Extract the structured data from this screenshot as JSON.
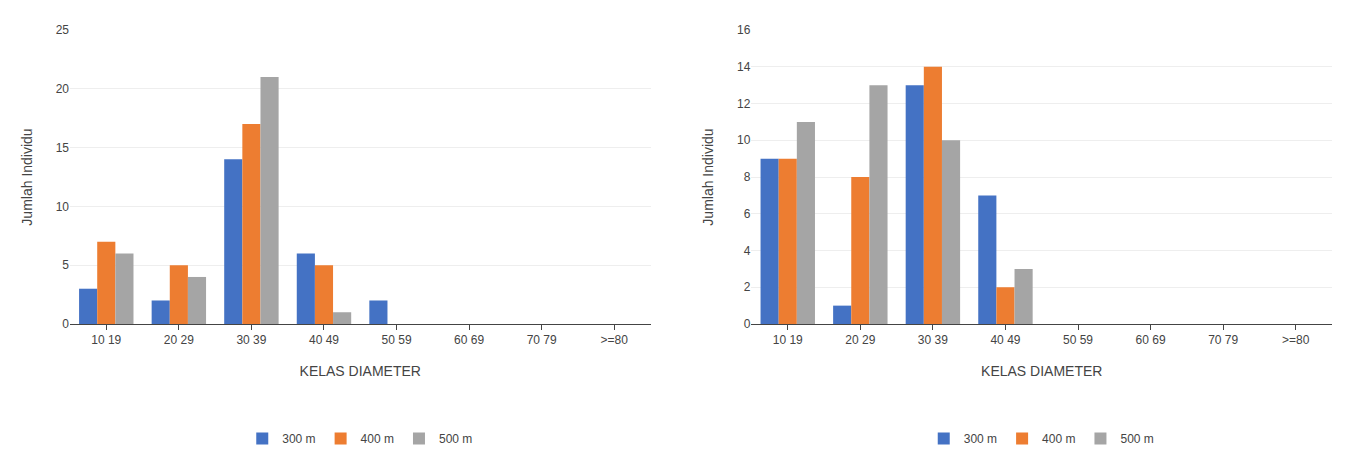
{
  "chart_data": [
    {
      "type": "bar",
      "categories": [
        "10 19",
        "20 29",
        "30 39",
        "40 49",
        "50 59",
        "60 69",
        "70 79",
        ">=80"
      ],
      "series": [
        {
          "name": "300 m",
          "color": "#4472C4",
          "values": [
            3,
            2,
            14,
            6,
            2,
            0,
            0,
            0
          ]
        },
        {
          "name": "400 m",
          "color": "#ED7D31",
          "values": [
            7,
            5,
            17,
            5,
            0,
            0,
            0,
            0
          ]
        },
        {
          "name": "500 m",
          "color": "#A5A5A5",
          "values": [
            6,
            4,
            21,
            1,
            0,
            0,
            0,
            0
          ]
        }
      ],
      "xlabel": "KELAS DIAMETER",
      "ylabel": "Jumlah Individu",
      "ylim": [
        0,
        25
      ],
      "yticks": [
        0,
        5,
        10,
        15,
        20,
        25
      ],
      "grid": true,
      "legend": "bottom"
    },
    {
      "type": "bar",
      "categories": [
        "10 19",
        "20 29",
        "30 39",
        "40 49",
        "50 59",
        "60 69",
        "70 79",
        ">=80"
      ],
      "series": [
        {
          "name": "300 m",
          "color": "#4472C4",
          "values": [
            9,
            1,
            13,
            7,
            0,
            0,
            0,
            0
          ]
        },
        {
          "name": "400 m",
          "color": "#ED7D31",
          "values": [
            9,
            8,
            14,
            2,
            0,
            0,
            0,
            0
          ]
        },
        {
          "name": "500 m",
          "color": "#A5A5A5",
          "values": [
            11,
            13,
            10,
            3,
            0,
            0,
            0,
            0
          ]
        }
      ],
      "xlabel": "KELAS DIAMETER",
      "ylabel": "Jumlah Individu",
      "ylim": [
        0,
        16
      ],
      "yticks": [
        0,
        2,
        4,
        6,
        8,
        10,
        12,
        14,
        16
      ],
      "grid": true,
      "legend": "bottom"
    }
  ]
}
